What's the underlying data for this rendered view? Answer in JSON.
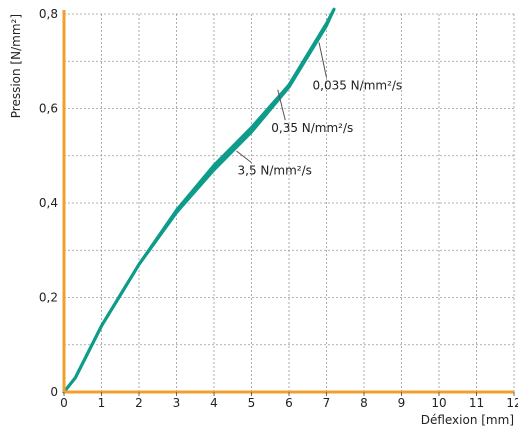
{
  "chart_data": {
    "type": "line",
    "title": "",
    "xlabel": "Déflexion [mm]",
    "ylabel": "Pression [N/mm²]",
    "xlim": [
      0,
      12
    ],
    "ylim": [
      0,
      0.8
    ],
    "x_ticks": [
      "0",
      "1",
      "2",
      "3",
      "4",
      "5",
      "6",
      "7",
      "8",
      "9",
      "10",
      "11",
      "12"
    ],
    "y_ticks": [
      "0",
      "0,2",
      "0,4",
      "0,6",
      "0,8"
    ],
    "grid": true,
    "series": [
      {
        "name": "3,5 N/mm²/s",
        "x": [
          0,
          0.3,
          1,
          2,
          3,
          4,
          4.5,
          5,
          6,
          7,
          7.2
        ],
        "y": [
          0,
          0.03,
          0.14,
          0.27,
          0.385,
          0.48,
          0.52,
          0.56,
          0.65,
          0.78,
          0.81
        ]
      },
      {
        "name": "0,35 N/mm²/s",
        "x": [
          0,
          0.3,
          1,
          2,
          3,
          4,
          4.5,
          5,
          6,
          7,
          7.2
        ],
        "y": [
          0,
          0.03,
          0.14,
          0.27,
          0.38,
          0.475,
          0.515,
          0.555,
          0.65,
          0.78,
          0.81
        ]
      },
      {
        "name": "0,035 N/mm²/s",
        "x": [
          0,
          0.3,
          1,
          2,
          3,
          4,
          4.5,
          5,
          6,
          7,
          7.2
        ],
        "y": [
          0,
          0.03,
          0.14,
          0.27,
          0.38,
          0.47,
          0.51,
          0.55,
          0.645,
          0.775,
          0.81
        ]
      }
    ],
    "annotations": [
      {
        "text": "0,035 N/mm²/s",
        "point": [
          6.8,
          0.74
        ],
        "label_at": [
          7.0,
          0.64
        ]
      },
      {
        "text": "0,35 N/mm²/s",
        "point": [
          5.7,
          0.64
        ],
        "label_at": [
          5.9,
          0.55
        ]
      },
      {
        "text": "3,5 N/mm²/s",
        "point": [
          4.6,
          0.51
        ],
        "label_at": [
          5.0,
          0.46
        ]
      }
    ],
    "colors": {
      "line": "#0e9c8a",
      "axis": "#f0a02c",
      "grid": "#9a9a9a"
    }
  }
}
